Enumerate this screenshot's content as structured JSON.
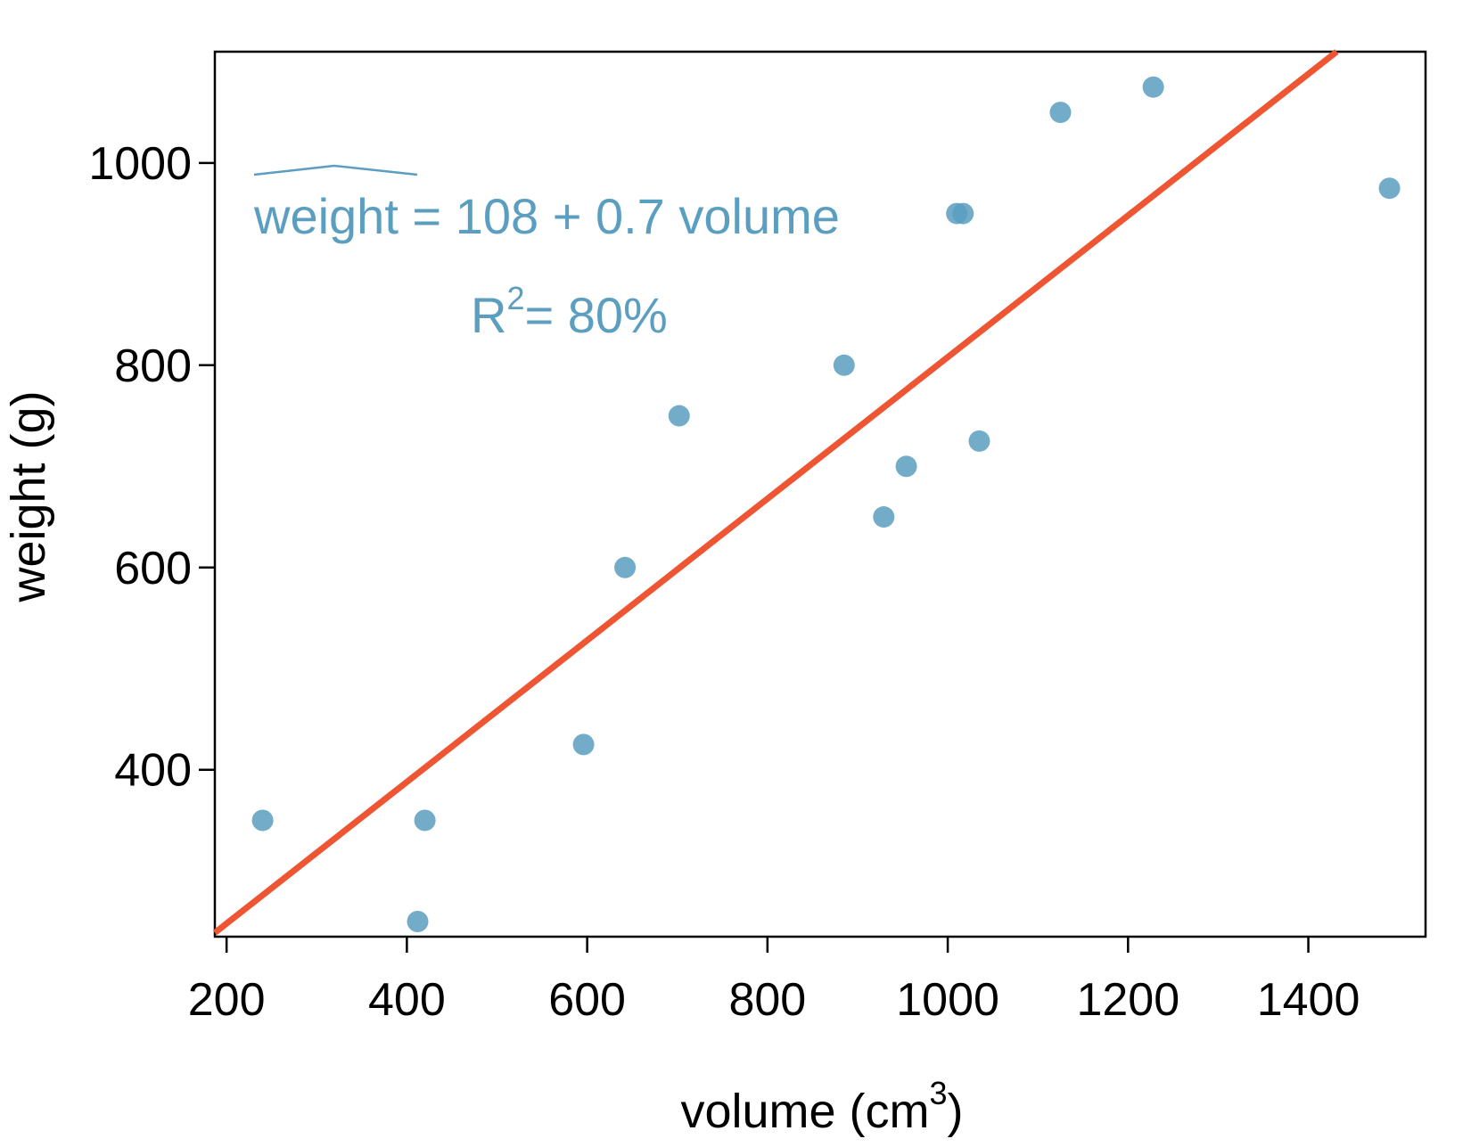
{
  "chart_data": {
    "type": "scatter",
    "xlabel": "volume (cm",
    "xlabel_superscript": "3",
    "xlabel_close": ")",
    "ylabel": "weight (g)",
    "xlim": [
      187,
      1530
    ],
    "ylim": [
      235,
      1110
    ],
    "xticks": [
      200,
      400,
      600,
      800,
      1000,
      1200,
      1400
    ],
    "yticks": [
      400,
      600,
      800,
      1000
    ],
    "points": [
      {
        "x": 240,
        "y": 350
      },
      {
        "x": 412,
        "y": 250
      },
      {
        "x": 420,
        "y": 350
      },
      {
        "x": 596,
        "y": 425
      },
      {
        "x": 642,
        "y": 600
      },
      {
        "x": 702,
        "y": 750
      },
      {
        "x": 885,
        "y": 800
      },
      {
        "x": 929,
        "y": 650
      },
      {
        "x": 954,
        "y": 700
      },
      {
        "x": 1010,
        "y": 950
      },
      {
        "x": 1017,
        "y": 950
      },
      {
        "x": 1035,
        "y": 725
      },
      {
        "x": 1125,
        "y": 1050
      },
      {
        "x": 1228,
        "y": 1075
      },
      {
        "x": 1490,
        "y": 975
      }
    ],
    "regression": {
      "intercept": 108,
      "slope": 0.7
    },
    "grid": false,
    "colors": {
      "points": "#5b9ec0",
      "line": "#ee5533",
      "annotation": "#5b9ec0"
    }
  },
  "annotation": {
    "equation_lhs": "weight",
    "equation_rhs": " = 108 + 0.7 volume",
    "r2_prefix": "R",
    "r2_superscript": "2",
    "r2_suffix": "= 80%"
  }
}
